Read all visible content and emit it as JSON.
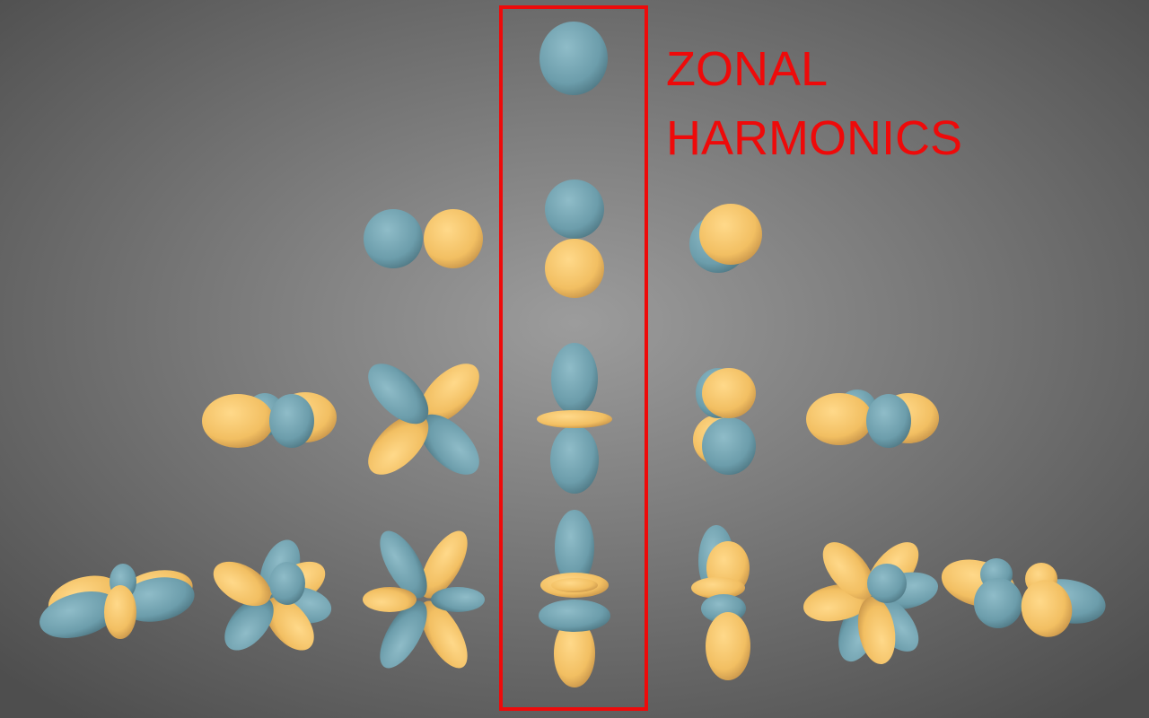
{
  "label": {
    "lines": [
      "ZONAL",
      "HARMONICS"
    ]
  }
}
